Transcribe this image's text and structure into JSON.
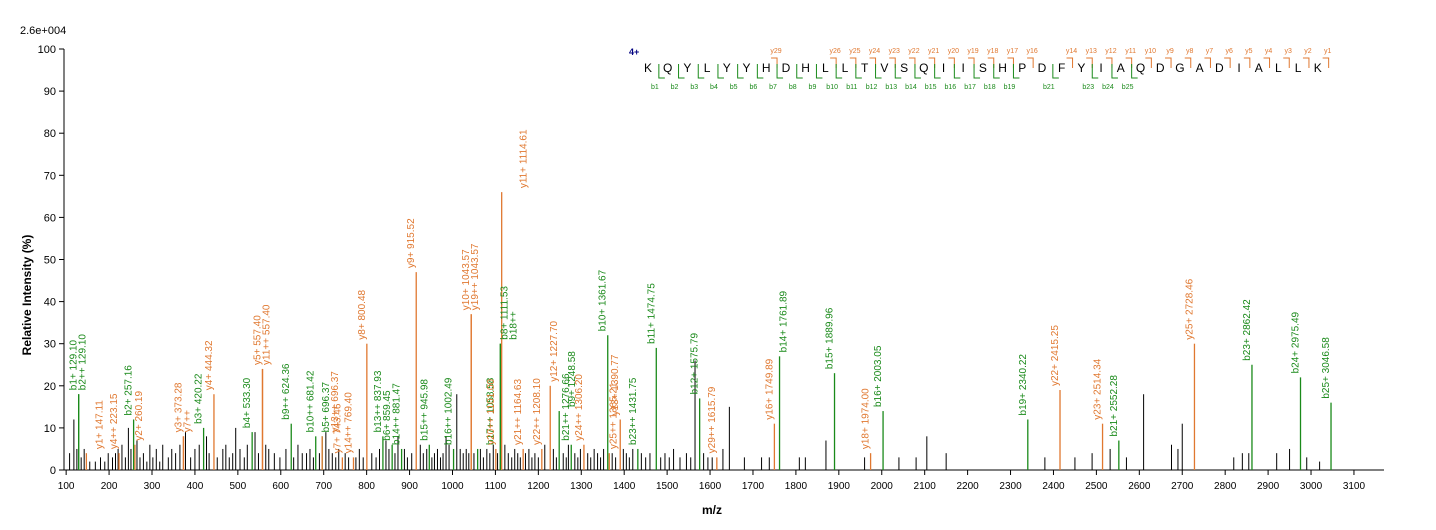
{
  "chart_data": {
    "type": "bar",
    "chart_kind": "ms-ms-spectrum",
    "title": "",
    "xlabel": "m/z",
    "ylabel": "Relative   Intensity (%)",
    "max_intensity_label": "2.6e+004",
    "xlim": [
      95,
      3170
    ],
    "ylim": [
      0,
      100
    ],
    "x_ticks": [
      100,
      200,
      300,
      400,
      500,
      600,
      700,
      800,
      900,
      1000,
      1100,
      1200,
      1300,
      1400,
      1500,
      1600,
      1700,
      1800,
      1900,
      2000,
      2100,
      2200,
      2300,
      2400,
      2500,
      2600,
      2700,
      2800,
      2900,
      3000,
      3100
    ],
    "y_ticks": [
      0,
      10,
      20,
      30,
      40,
      50,
      60,
      70,
      80,
      90,
      100
    ],
    "colors": {
      "b": "#1a8a1a",
      "y": "#e07830",
      "unassigned": "#000000",
      "axis": "#000000",
      "charge": "#000080"
    },
    "peptide": {
      "charge_label": "4+",
      "sequence": [
        "K",
        "Q",
        "Y",
        "L",
        "Y",
        "Y",
        "H",
        "D",
        "H",
        "L",
        "L",
        "T",
        "V",
        "S",
        "Q",
        "I",
        "I",
        "S",
        "H",
        "P",
        "D",
        "F",
        "Y",
        "I",
        "A",
        "Q",
        "D",
        "G",
        "A",
        "D",
        "I",
        "A",
        "L",
        "L",
        "K"
      ],
      "b_ions": [
        {
          "pos": 1,
          "label": "b1"
        },
        {
          "pos": 2,
          "label": "b2"
        },
        {
          "pos": 3,
          "label": "b3"
        },
        {
          "pos": 4,
          "label": "b4"
        },
        {
          "pos": 5,
          "label": "b5"
        },
        {
          "pos": 6,
          "label": "b6"
        },
        {
          "pos": 7,
          "label": "b7"
        },
        {
          "pos": 8,
          "label": "b8"
        },
        {
          "pos": 9,
          "label": "b9"
        },
        {
          "pos": 10,
          "label": "b10"
        },
        {
          "pos": 11,
          "label": "b11"
        },
        {
          "pos": 12,
          "label": "b12"
        },
        {
          "pos": 13,
          "label": "b13"
        },
        {
          "pos": 14,
          "label": "b14"
        },
        {
          "pos": 15,
          "label": "b15"
        },
        {
          "pos": 16,
          "label": "b16"
        },
        {
          "pos": 17,
          "label": "b17"
        },
        {
          "pos": 18,
          "label": "b18"
        },
        {
          "pos": 19,
          "label": "b19"
        },
        {
          "pos": 21,
          "label": "b21"
        },
        {
          "pos": 23,
          "label": "b23"
        },
        {
          "pos": 24,
          "label": "b24"
        },
        {
          "pos": 25,
          "label": "b25"
        }
      ],
      "y_ions": [
        {
          "pos": 7,
          "label": "y29"
        },
        {
          "pos": 10,
          "label": "y26"
        },
        {
          "pos": 11,
          "label": "y25"
        },
        {
          "pos": 12,
          "label": "y24"
        },
        {
          "pos": 13,
          "label": "y23"
        },
        {
          "pos": 14,
          "label": "y22"
        },
        {
          "pos": 15,
          "label": "y21"
        },
        {
          "pos": 16,
          "label": "y20"
        },
        {
          "pos": 17,
          "label": "y19"
        },
        {
          "pos": 18,
          "label": "y18"
        },
        {
          "pos": 19,
          "label": "y17"
        },
        {
          "pos": 20,
          "label": "y16"
        },
        {
          "pos": 22,
          "label": "y14"
        },
        {
          "pos": 23,
          "label": "y13"
        },
        {
          "pos": 24,
          "label": "y12"
        },
        {
          "pos": 25,
          "label": "y11"
        },
        {
          "pos": 26,
          "label": "y10"
        },
        {
          "pos": 27,
          "label": "y9"
        },
        {
          "pos": 28,
          "label": "y8"
        },
        {
          "pos": 29,
          "label": "y7"
        },
        {
          "pos": 30,
          "label": "y6"
        },
        {
          "pos": 31,
          "label": "y5"
        },
        {
          "pos": 32,
          "label": "y4"
        },
        {
          "pos": 33,
          "label": "y3"
        },
        {
          "pos": 34,
          "label": "y2"
        },
        {
          "pos": 35,
          "label": "y1"
        }
      ]
    },
    "annotated_peaks": [
      {
        "mz": 129.1,
        "intensity": 18,
        "label": "b1+ 129.10",
        "type": "b"
      },
      {
        "mz": 129.1,
        "intensity": 18,
        "label": "b2++ 129.10",
        "type": "b"
      },
      {
        "mz": 147.11,
        "intensity": 4,
        "label": "y1+ 147.11",
        "type": "y"
      },
      {
        "mz": 223.15,
        "intensity": 4,
        "label": "y4++ 223.15",
        "type": "y"
      },
      {
        "mz": 257.16,
        "intensity": 12,
        "label": "b2+ 257.16",
        "type": "b"
      },
      {
        "mz": 260.19,
        "intensity": 6,
        "label": "y2+ 260.19",
        "type": "y"
      },
      {
        "mz": 373.28,
        "intensity": 8,
        "label": "y3+ 373.28",
        "type": "y"
      },
      {
        "mz": 373.28,
        "intensity": 8,
        "label": "y7++",
        "type": "y"
      },
      {
        "mz": 420.22,
        "intensity": 10,
        "label": "b3+ 420.22",
        "type": "b"
      },
      {
        "mz": 444.32,
        "intensity": 18,
        "label": "y4+ 444.32",
        "type": "y"
      },
      {
        "mz": 533.3,
        "intensity": 9,
        "label": "b4+ 533.30",
        "type": "b"
      },
      {
        "mz": 557.4,
        "intensity": 24,
        "label": "y5+ 557.40",
        "type": "y"
      },
      {
        "mz": 557.4,
        "intensity": 24,
        "label": "y11++ 557.40",
        "type": "y"
      },
      {
        "mz": 624.36,
        "intensity": 11,
        "label": "b9++ 624.36",
        "type": "b"
      },
      {
        "mz": 681.42,
        "intensity": 8,
        "label": "b10++ 681.42",
        "type": "b"
      },
      {
        "mz": 696.37,
        "intensity": 8,
        "label": "b5+ 696.37",
        "type": "b"
      },
      {
        "mz": 696.37,
        "intensity": 8,
        "label": "y13++ 696.37",
        "type": "y"
      },
      {
        "mz": 743.46,
        "intensity": 3,
        "label": "y7+ 743.46",
        "type": "y"
      },
      {
        "mz": 769.4,
        "intensity": 3,
        "label": "y14++ 769.40",
        "type": "y"
      },
      {
        "mz": 800.48,
        "intensity": 30,
        "label": "y8+ 800.48",
        "type": "y"
      },
      {
        "mz": 837.93,
        "intensity": 8,
        "label": "b13++ 837.93",
        "type": "b"
      },
      {
        "mz": 859.45,
        "intensity": 6,
        "label": "b6+ 859.45",
        "type": "b"
      },
      {
        "mz": 881.47,
        "intensity": 5,
        "label": "b14++ 881.47",
        "type": "b"
      },
      {
        "mz": 915.52,
        "intensity": 47,
        "label": "y9+ 915.52",
        "type": "y"
      },
      {
        "mz": 945.98,
        "intensity": 6,
        "label": "b15++ 945.98",
        "type": "b"
      },
      {
        "mz": 1002.49,
        "intensity": 5,
        "label": "b16++ 1002.49",
        "type": "b"
      },
      {
        "mz": 1043.57,
        "intensity": 37,
        "label": "y10+ 1043.57",
        "type": "y"
      },
      {
        "mz": 1043.57,
        "intensity": 37,
        "label": "y19++ 1043.57",
        "type": "y"
      },
      {
        "mz": 1058.58,
        "intensity": 5,
        "label": "b17++ 1058.58",
        "type": "b"
      },
      {
        "mz": 1101.0,
        "intensity": 5,
        "label": "y20++ 1101.00",
        "type": "y"
      },
      {
        "mz": 1111.53,
        "intensity": 30,
        "label": "b8+ 1111.53",
        "type": "b"
      },
      {
        "mz": 1111.53,
        "intensity": 30,
        "label": "b18++",
        "type": "b"
      },
      {
        "mz": 1114.61,
        "intensity": 66,
        "label": "y11+ 1114.61",
        "type": "y"
      },
      {
        "mz": 1164.63,
        "intensity": 5,
        "label": "y21++ 1164.63",
        "type": "y"
      },
      {
        "mz": 1208.1,
        "intensity": 5,
        "label": "y22++ 1208.10",
        "type": "y"
      },
      {
        "mz": 1227.7,
        "intensity": 20,
        "label": "y12+ 1227.70",
        "type": "y"
      },
      {
        "mz": 1248.58,
        "intensity": 14,
        "label": "b9+ 1248.58",
        "type": "b"
      },
      {
        "mz": 1276.66,
        "intensity": 6,
        "label": "b21++ 1276.66",
        "type": "b"
      },
      {
        "mz": 1306.2,
        "intensity": 6,
        "label": "y24++ 1306.20",
        "type": "y"
      },
      {
        "mz": 1361.67,
        "intensity": 32,
        "label": "b10+ 1361.67",
        "type": "b"
      },
      {
        "mz": 1365.21,
        "intensity": 4,
        "label": "y25++ 1365.21",
        "type": "y"
      },
      {
        "mz": 1390.77,
        "intensity": 12,
        "label": "y13+ 1390.77",
        "type": "y"
      },
      {
        "mz": 1431.75,
        "intensity": 5,
        "label": "b23++ 1431.75",
        "type": "b"
      },
      {
        "mz": 1474.75,
        "intensity": 29,
        "label": "b11+ 1474.75",
        "type": "b"
      },
      {
        "mz": 1575.79,
        "intensity": 17,
        "label": "b12+ 1575.79",
        "type": "b"
      },
      {
        "mz": 1615.79,
        "intensity": 3,
        "label": "y29++ 1615.79",
        "type": "y"
      },
      {
        "mz": 1749.89,
        "intensity": 11,
        "label": "y16+ 1749.89",
        "type": "y"
      },
      {
        "mz": 1761.89,
        "intensity": 27,
        "label": "b14+ 1761.89",
        "type": "b"
      },
      {
        "mz": 1889.96,
        "intensity": 23,
        "label": "b15+ 1889.96",
        "type": "b"
      },
      {
        "mz": 1974.0,
        "intensity": 4,
        "label": "y18+ 1974.00",
        "type": "y"
      },
      {
        "mz": 2003.05,
        "intensity": 14,
        "label": "b16+ 2003.05",
        "type": "b"
      },
      {
        "mz": 2340.22,
        "intensity": 12,
        "label": "b19+ 2340.22",
        "type": "b"
      },
      {
        "mz": 2415.25,
        "intensity": 19,
        "label": "y22+ 2415.25",
        "type": "y"
      },
      {
        "mz": 2514.34,
        "intensity": 11,
        "label": "y23+ 2514.34",
        "type": "y"
      },
      {
        "mz": 2552.28,
        "intensity": 7,
        "label": "b21+ 2552.28",
        "type": "b"
      },
      {
        "mz": 2728.46,
        "intensity": 30,
        "label": "y25+ 2728.46",
        "type": "y"
      },
      {
        "mz": 2862.42,
        "intensity": 25,
        "label": "b23+ 2862.42",
        "type": "b"
      },
      {
        "mz": 2975.49,
        "intensity": 22,
        "label": "b24+ 2975.49",
        "type": "b"
      },
      {
        "mz": 3046.58,
        "intensity": 16,
        "label": "b25+ 3046.58",
        "type": "b"
      }
    ],
    "unassigned_peaks": [
      [
        108,
        4
      ],
      [
        118,
        12
      ],
      [
        125,
        5
      ],
      [
        135,
        3
      ],
      [
        142,
        5
      ],
      [
        155,
        2
      ],
      [
        168,
        2
      ],
      [
        180,
        3
      ],
      [
        190,
        2
      ],
      [
        198,
        4
      ],
      [
        208,
        3
      ],
      [
        215,
        4
      ],
      [
        221,
        5
      ],
      [
        230,
        6
      ],
      [
        238,
        3
      ],
      [
        245,
        10
      ],
      [
        251,
        5
      ],
      [
        265,
        7
      ],
      [
        272,
        3
      ],
      [
        280,
        4
      ],
      [
        288,
        2
      ],
      [
        295,
        6
      ],
      [
        302,
        3
      ],
      [
        310,
        5
      ],
      [
        318,
        2
      ],
      [
        325,
        6
      ],
      [
        338,
        3
      ],
      [
        346,
        5
      ],
      [
        355,
        4
      ],
      [
        365,
        6
      ],
      [
        378,
        9
      ],
      [
        390,
        3
      ],
      [
        400,
        5
      ],
      [
        410,
        6
      ],
      [
        427,
        8
      ],
      [
        433,
        4
      ],
      [
        452,
        3
      ],
      [
        465,
        5
      ],
      [
        472,
        6
      ],
      [
        480,
        3
      ],
      [
        488,
        4
      ],
      [
        495,
        10
      ],
      [
        505,
        5
      ],
      [
        515,
        3
      ],
      [
        522,
        6
      ],
      [
        540,
        9
      ],
      [
        548,
        4
      ],
      [
        565,
        6
      ],
      [
        572,
        5
      ],
      [
        585,
        4
      ],
      [
        598,
        3
      ],
      [
        612,
        5
      ],
      [
        630,
        3
      ],
      [
        640,
        6
      ],
      [
        650,
        4
      ],
      [
        660,
        4
      ],
      [
        668,
        5
      ],
      [
        676,
        3
      ],
      [
        690,
        4
      ],
      [
        705,
        9
      ],
      [
        712,
        5
      ],
      [
        720,
        4
      ],
      [
        728,
        3
      ],
      [
        735,
        5
      ],
      [
        750,
        4
      ],
      [
        758,
        3
      ],
      [
        775,
        3
      ],
      [
        783,
        5
      ],
      [
        792,
        3
      ],
      [
        812,
        4
      ],
      [
        822,
        3
      ],
      [
        830,
        5
      ],
      [
        845,
        7
      ],
      [
        852,
        5
      ],
      [
        866,
        4
      ],
      [
        873,
        8
      ],
      [
        888,
        5
      ],
      [
        895,
        3
      ],
      [
        905,
        4
      ],
      [
        925,
        6
      ],
      [
        932,
        4
      ],
      [
        940,
        5
      ],
      [
        952,
        3
      ],
      [
        958,
        4
      ],
      [
        965,
        5
      ],
      [
        972,
        3
      ],
      [
        978,
        4
      ],
      [
        985,
        8
      ],
      [
        992,
        6
      ],
      [
        1010,
        18
      ],
      [
        1018,
        5
      ],
      [
        1025,
        4
      ],
      [
        1032,
        5
      ],
      [
        1038,
        4
      ],
      [
        1050,
        4
      ],
      [
        1065,
        5
      ],
      [
        1072,
        3
      ],
      [
        1080,
        5
      ],
      [
        1087,
        4
      ],
      [
        1095,
        6
      ],
      [
        1105,
        4
      ],
      [
        1122,
        6
      ],
      [
        1130,
        4
      ],
      [
        1138,
        3
      ],
      [
        1145,
        5
      ],
      [
        1152,
        4
      ],
      [
        1158,
        3
      ],
      [
        1170,
        4
      ],
      [
        1178,
        5
      ],
      [
        1185,
        3
      ],
      [
        1192,
        4
      ],
      [
        1200,
        3
      ],
      [
        1215,
        6
      ],
      [
        1235,
        5
      ],
      [
        1242,
        3
      ],
      [
        1258,
        4
      ],
      [
        1265,
        3
      ],
      [
        1270,
        6
      ],
      [
        1285,
        4
      ],
      [
        1292,
        3
      ],
      [
        1298,
        5
      ],
      [
        1315,
        4
      ],
      [
        1322,
        3
      ],
      [
        1330,
        5
      ],
      [
        1338,
        4
      ],
      [
        1345,
        3
      ],
      [
        1352,
        5
      ],
      [
        1372,
        4
      ],
      [
        1380,
        3
      ],
      [
        1398,
        5
      ],
      [
        1405,
        4
      ],
      [
        1412,
        3
      ],
      [
        1420,
        5
      ],
      [
        1440,
        4
      ],
      [
        1450,
        3
      ],
      [
        1460,
        4
      ],
      [
        1485,
        3
      ],
      [
        1495,
        4
      ],
      [
        1505,
        3
      ],
      [
        1515,
        5
      ],
      [
        1530,
        3
      ],
      [
        1545,
        4
      ],
      [
        1555,
        3
      ],
      [
        1565,
        26
      ],
      [
        1585,
        4
      ],
      [
        1595,
        3
      ],
      [
        1605,
        3
      ],
      [
        1630,
        5
      ],
      [
        1645,
        15
      ],
      [
        1680,
        3
      ],
      [
        1720,
        3
      ],
      [
        1738,
        3
      ],
      [
        1808,
        3
      ],
      [
        1822,
        3
      ],
      [
        1870,
        7
      ],
      [
        1960,
        3
      ],
      [
        2040,
        3
      ],
      [
        2080,
        3
      ],
      [
        2105,
        8
      ],
      [
        2150,
        4
      ],
      [
        2380,
        3
      ],
      [
        2450,
        3
      ],
      [
        2490,
        4
      ],
      [
        2532,
        5
      ],
      [
        2570,
        3
      ],
      [
        2610,
        18
      ],
      [
        2675,
        6
      ],
      [
        2690,
        5
      ],
      [
        2700,
        11
      ],
      [
        2820,
        3
      ],
      [
        2840,
        4
      ],
      [
        2855,
        4
      ],
      [
        2920,
        4
      ],
      [
        2950,
        5
      ],
      [
        2990,
        3
      ],
      [
        3020,
        2
      ]
    ]
  }
}
